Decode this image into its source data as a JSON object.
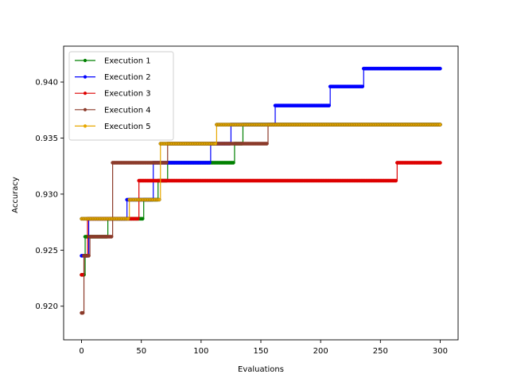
{
  "chart_data": {
    "type": "line",
    "xlabel": "Evaluations",
    "ylabel": "Accuracy",
    "xlim": [
      -15,
      315
    ],
    "ylim": [
      0.917,
      0.9432
    ],
    "xticks": [
      0,
      50,
      100,
      150,
      200,
      250,
      300
    ],
    "yticks": [
      0.92,
      0.925,
      0.93,
      0.935,
      0.94
    ],
    "xtick_labels": [
      "0",
      "50",
      "100",
      "150",
      "200",
      "250",
      "300"
    ],
    "ytick_labels": [
      "0.920",
      "0.925",
      "0.930",
      "0.935",
      "0.940"
    ],
    "grid": false,
    "legend_position": "upper-left",
    "series": [
      {
        "name": "Execution 1",
        "color": "#008000",
        "steps": [
          [
            0,
            0.9228
          ],
          [
            3,
            0.9262
          ],
          [
            22,
            0.9278
          ],
          [
            52,
            0.9295
          ],
          [
            64,
            0.9312
          ],
          [
            72,
            0.9328
          ],
          [
            128,
            0.9345
          ],
          [
            135,
            0.9362
          ]
        ],
        "x_end": 300
      },
      {
        "name": "Execution 2",
        "color": "#0000ff",
        "steps": [
          [
            0,
            0.9245
          ],
          [
            6,
            0.9278
          ],
          [
            38,
            0.9295
          ],
          [
            60,
            0.9328
          ],
          [
            108,
            0.9345
          ],
          [
            125,
            0.9362
          ],
          [
            162,
            0.9379
          ],
          [
            208,
            0.9396
          ],
          [
            236,
            0.9412
          ]
        ],
        "x_end": 300
      },
      {
        "name": "Execution 3",
        "color": "#dd0000",
        "steps": [
          [
            0,
            0.9228
          ],
          [
            2,
            0.9245
          ],
          [
            5,
            0.9278
          ],
          [
            48,
            0.9312
          ],
          [
            264,
            0.9328
          ]
        ],
        "x_end": 300
      },
      {
        "name": "Execution 4",
        "color": "#8b3a2a",
        "steps": [
          [
            0,
            0.9194
          ],
          [
            2,
            0.9245
          ],
          [
            7,
            0.9262
          ],
          [
            26,
            0.9328
          ],
          [
            72,
            0.9345
          ],
          [
            156,
            0.9362
          ]
        ],
        "x_end": 300
      },
      {
        "name": "Execution 5",
        "color": "#e8a800",
        "steps": [
          [
            0,
            0.9278
          ],
          [
            40,
            0.9295
          ],
          [
            66,
            0.9345
          ],
          [
            113,
            0.9362
          ]
        ],
        "x_end": 300
      }
    ]
  }
}
